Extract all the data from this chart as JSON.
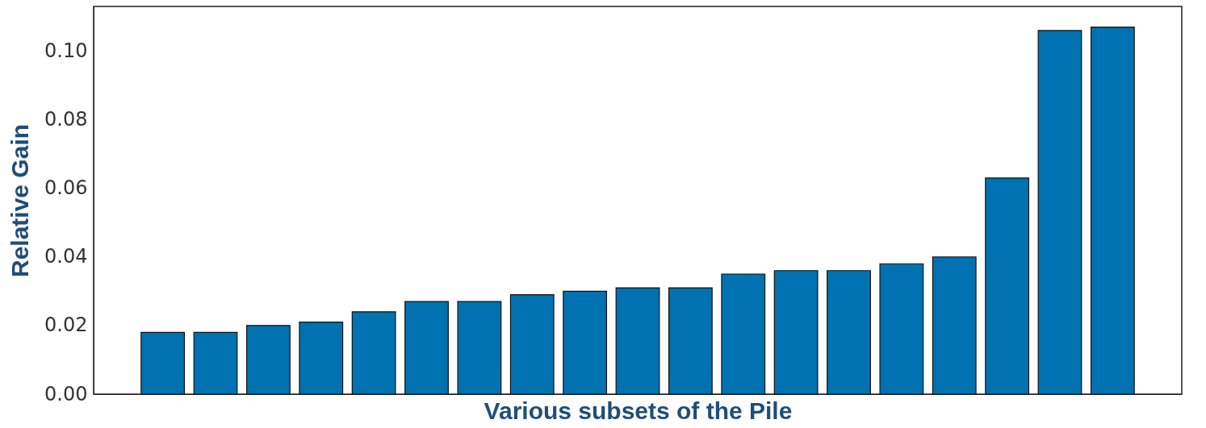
{
  "chart_data": {
    "type": "bar",
    "xlabel": "Various subsets of the Pile",
    "ylabel": "Relative Gain",
    "categories": [
      null,
      null,
      null,
      null,
      null,
      null,
      null,
      null,
      null,
      null,
      null,
      null,
      null,
      null,
      null,
      null,
      null,
      null,
      null
    ],
    "values": [
      0.018,
      0.018,
      0.02,
      0.021,
      0.024,
      0.027,
      0.027,
      0.029,
      0.03,
      0.031,
      0.031,
      0.035,
      0.036,
      0.036,
      0.038,
      0.04,
      0.063,
      0.106,
      0.107
    ],
    "color": "#0072b2",
    "ylim": [
      0,
      0.113
    ],
    "yticks": [
      {
        "value": 0,
        "label": "0.00"
      },
      {
        "value": 0.02,
        "label": "0.02"
      },
      {
        "value": 0.04,
        "label": "0.04"
      },
      {
        "value": 0.06,
        "label": "0.06"
      },
      {
        "value": 0.08,
        "label": "0.08"
      },
      {
        "value": 0.1,
        "label": "0.10"
      }
    ],
    "grid": false,
    "tick_labels": "y"
  }
}
